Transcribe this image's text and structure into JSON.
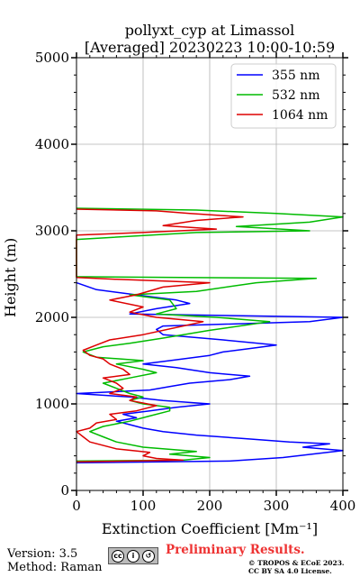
{
  "chart_data": {
    "type": "line",
    "title": "pollyxt_cyp at Limassol",
    "subtitle": "[Averaged] 20230223 10:00-10:59",
    "xlabel": "Extinction Coefficient [Mm⁻¹]",
    "ylabel": "Height (m)",
    "xlim": [
      0,
      400
    ],
    "ylim": [
      0,
      5000
    ],
    "xticks": [
      0,
      100,
      200,
      300,
      400
    ],
    "yticks": [
      0,
      1000,
      2000,
      3000,
      4000,
      5000
    ],
    "grid": true,
    "legend_position": "top-right",
    "series": [
      {
        "name": "355 nm",
        "color": "#0000ff",
        "points": [
          [
            0,
            320
          ],
          [
            230,
            340
          ],
          [
            310,
            380
          ],
          [
            400,
            460
          ],
          [
            340,
            500
          ],
          [
            380,
            540
          ],
          [
            320,
            560
          ],
          [
            250,
            600
          ],
          [
            180,
            640
          ],
          [
            130,
            680
          ],
          [
            100,
            720
          ],
          [
            80,
            760
          ],
          [
            60,
            800
          ],
          [
            90,
            840
          ],
          [
            70,
            880
          ],
          [
            110,
            920
          ],
          [
            150,
            960
          ],
          [
            200,
            1000
          ],
          [
            130,
            1040
          ],
          [
            80,
            1080
          ],
          [
            0,
            1120
          ],
          [
            110,
            1160
          ],
          [
            140,
            1200
          ],
          [
            170,
            1240
          ],
          [
            230,
            1280
          ],
          [
            260,
            1320
          ],
          [
            200,
            1360
          ],
          [
            150,
            1420
          ],
          [
            100,
            1460
          ],
          [
            140,
            1500
          ],
          [
            200,
            1560
          ],
          [
            220,
            1600
          ],
          [
            260,
            1640
          ],
          [
            300,
            1680
          ],
          [
            220,
            1740
          ],
          [
            130,
            1800
          ],
          [
            120,
            1860
          ],
          [
            130,
            1900
          ],
          [
            350,
            1950
          ],
          [
            400,
            2000
          ],
          [
            80,
            2040
          ],
          [
            120,
            2100
          ],
          [
            170,
            2160
          ],
          [
            150,
            2200
          ],
          [
            100,
            2250
          ],
          [
            30,
            2320
          ],
          [
            0,
            2400
          ]
        ]
      },
      {
        "name": "532 nm",
        "color": "#00bb00",
        "points": [
          [
            0,
            340
          ],
          [
            160,
            350
          ],
          [
            200,
            380
          ],
          [
            140,
            420
          ],
          [
            180,
            450
          ],
          [
            100,
            500
          ],
          [
            60,
            560
          ],
          [
            40,
            620
          ],
          [
            20,
            680
          ],
          [
            40,
            740
          ],
          [
            80,
            800
          ],
          [
            110,
            860
          ],
          [
            140,
            920
          ],
          [
            140,
            960
          ],
          [
            100,
            1000
          ],
          [
            80,
            1040
          ],
          [
            100,
            1080
          ],
          [
            80,
            1120
          ],
          [
            60,
            1180
          ],
          [
            40,
            1240
          ],
          [
            80,
            1300
          ],
          [
            120,
            1360
          ],
          [
            100,
            1400
          ],
          [
            60,
            1460
          ],
          [
            100,
            1500
          ],
          [
            30,
            1540
          ],
          [
            10,
            1600
          ],
          [
            40,
            1660
          ],
          [
            80,
            1700
          ],
          [
            130,
            1760
          ],
          [
            200,
            1850
          ],
          [
            290,
            1950
          ],
          [
            210,
            2000
          ],
          [
            120,
            2040
          ],
          [
            150,
            2100
          ],
          [
            140,
            2200
          ],
          [
            80,
            2260
          ],
          [
            180,
            2300
          ],
          [
            270,
            2400
          ],
          [
            360,
            2450
          ],
          [
            0,
            2470
          ],
          [
            0,
            2900
          ],
          [
            180,
            2980
          ],
          [
            350,
            3000
          ],
          [
            240,
            3050
          ],
          [
            350,
            3100
          ],
          [
            400,
            3160
          ],
          [
            300,
            3200
          ],
          [
            180,
            3240
          ],
          [
            0,
            3260
          ]
        ]
      },
      {
        "name": "1064 nm",
        "color": "#dd0000",
        "points": [
          [
            0,
            330
          ],
          [
            160,
            350
          ],
          [
            120,
            370
          ],
          [
            100,
            400
          ],
          [
            110,
            440
          ],
          [
            60,
            480
          ],
          [
            20,
            560
          ],
          [
            10,
            620
          ],
          [
            0,
            680
          ],
          [
            20,
            720
          ],
          [
            30,
            780
          ],
          [
            60,
            820
          ],
          [
            50,
            880
          ],
          [
            90,
            920
          ],
          [
            120,
            980
          ],
          [
            80,
            1040
          ],
          [
            90,
            1080
          ],
          [
            50,
            1120
          ],
          [
            70,
            1180
          ],
          [
            60,
            1240
          ],
          [
            40,
            1300
          ],
          [
            80,
            1340
          ],
          [
            70,
            1400
          ],
          [
            50,
            1460
          ],
          [
            40,
            1520
          ],
          [
            20,
            1560
          ],
          [
            10,
            1620
          ],
          [
            30,
            1680
          ],
          [
            50,
            1740
          ],
          [
            100,
            1800
          ],
          [
            160,
            1900
          ],
          [
            190,
            1950
          ],
          [
            120,
            2000
          ],
          [
            80,
            2060
          ],
          [
            100,
            2120
          ],
          [
            50,
            2200
          ],
          [
            90,
            2260
          ],
          [
            130,
            2350
          ],
          [
            200,
            2400
          ],
          [
            60,
            2440
          ],
          [
            0,
            2460
          ],
          [
            0,
            2950
          ],
          [
            100,
            2980
          ],
          [
            210,
            3020
          ],
          [
            130,
            3060
          ],
          [
            180,
            3120
          ],
          [
            250,
            3160
          ],
          [
            170,
            3200
          ],
          [
            120,
            3230
          ],
          [
            0,
            3250
          ]
        ]
      }
    ]
  },
  "footer": {
    "version": "Version: 3.5",
    "method": "Method: Raman",
    "preliminary": "Preliminary Results.",
    "copyright": "© TROPOS & ECoE 2023.",
    "license": "CC BY SA 4.0 License."
  }
}
